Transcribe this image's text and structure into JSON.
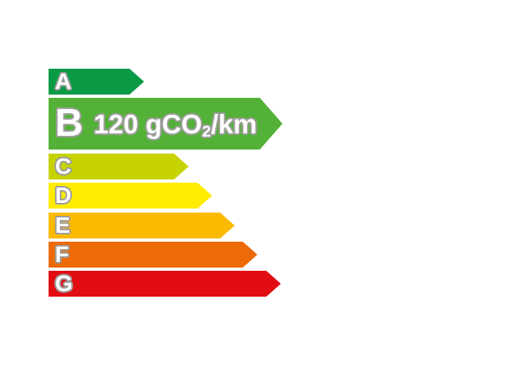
{
  "co2_label": {
    "selected_grade": "B",
    "value_text": "120 gCO",
    "value_sub": "2",
    "value_suffix": "/km",
    "full_value": "120 gCO2/km"
  },
  "grades": [
    {
      "letter": "A",
      "color": "#0A9A46"
    },
    {
      "letter": "B",
      "color": "#53B137"
    },
    {
      "letter": "C",
      "color": "#C6D300"
    },
    {
      "letter": "D",
      "color": "#FFEC00"
    },
    {
      "letter": "E",
      "color": "#FBBA00"
    },
    {
      "letter": "F",
      "color": "#EC6B08"
    },
    {
      "letter": "G",
      "color": "#E20D13"
    }
  ],
  "styles": {
    "text_color": "#FFFFFF",
    "outline_color": "#9D9D9C",
    "background": "#FFFFFF"
  }
}
